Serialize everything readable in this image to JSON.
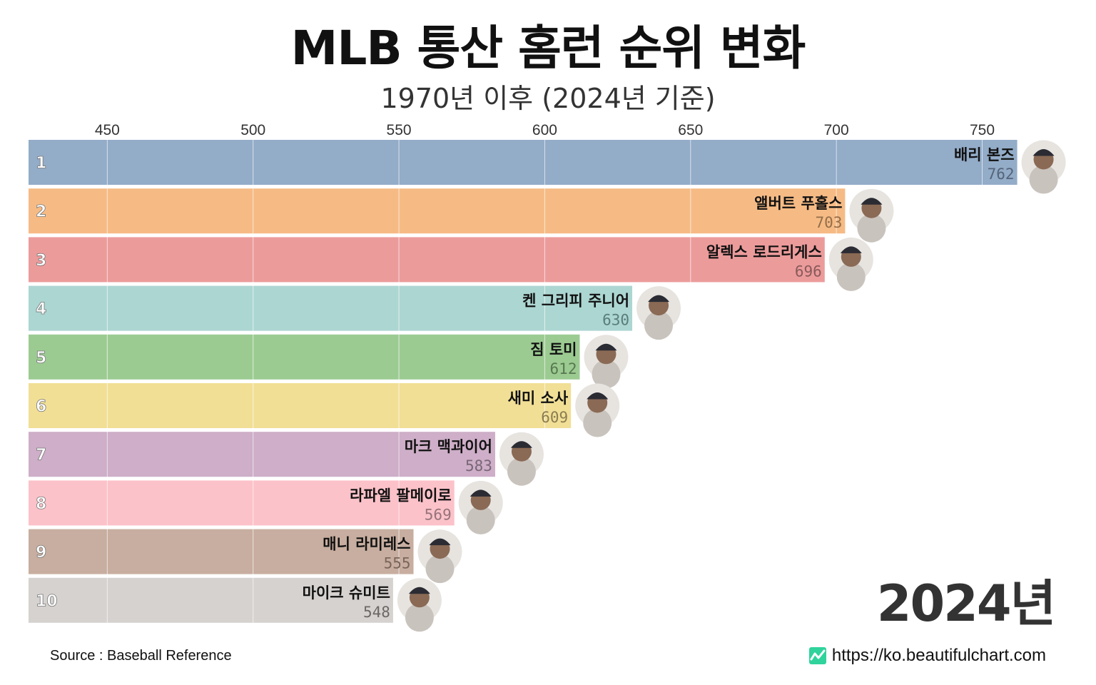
{
  "header": {
    "title": "MLB 통산 홈런 순위 변화",
    "subtitle": "1970년 이후 (2024년 기준)"
  },
  "period_label": "2024년",
  "footer": {
    "source": "Source : Baseball Reference",
    "url": "https://ko.beautifulchart.com"
  },
  "chart_data": {
    "type": "bar",
    "orientation": "horizontal",
    "x_ticks": [
      450,
      500,
      550,
      600,
      650,
      700,
      750
    ],
    "xlim": [
      423,
      790
    ],
    "grid": true,
    "categories": [
      "배리 본즈",
      "앨버트 푸홀스",
      "알렉스 로드리게스",
      "켄 그리피 주니어",
      "짐 토미",
      "새미 소사",
      "마크 맥과이어",
      "라파엘 팔메이로",
      "매니 라미레스",
      "마이크 슈미트"
    ],
    "ranks": [
      "1",
      "2",
      "3",
      "4",
      "5",
      "6",
      "7",
      "8",
      "9",
      "10"
    ],
    "values": [
      762,
      703,
      696,
      630,
      612,
      609,
      583,
      569,
      555,
      548
    ],
    "colors": [
      "#93acc8",
      "#f6bb85",
      "#ec9b9b",
      "#acd6d2",
      "#9ccb92",
      "#f1df96",
      "#ceaec8",
      "#fcc2c9",
      "#c8aea0",
      "#d6d2d0"
    ],
    "value_label_colors": [
      "#55647a",
      "#946e49",
      "#8a5a5a",
      "#5a7d7a",
      "#57784f",
      "#8a7d50",
      "#786676",
      "#96737a",
      "#7a6659",
      "#6b6866"
    ]
  }
}
